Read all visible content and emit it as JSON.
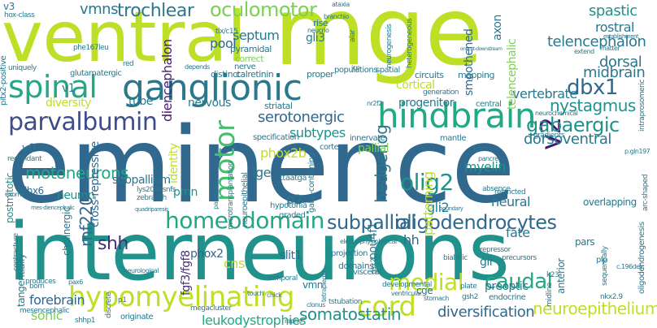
{
  "palette": {
    "dark_purple": "#46196e",
    "purple": "#472c7a",
    "indigo": "#3e4c8a",
    "blue": "#31688e",
    "steel_blue": "#2a788e",
    "teal": "#21918c",
    "green_teal": "#22a884",
    "green": "#44bf70",
    "light_green": "#7ad151",
    "yellow_green": "#bddf26",
    "yellow": "#e2e418"
  },
  "words": {
    "eminence": "eminence",
    "interneurons": "interneurons",
    "ventral": "ventral",
    "mge": "mge",
    "hindbrain": "hindbrain",
    "ganglionic": "ganglionic",
    "spinal": "spinal",
    "parvalbumin": "parvalbumin",
    "hypomyelinating": "hypomyelinating",
    "homeodomain": "homeodomain",
    "cord": "cord",
    "v2": "v2",
    "motor": "motor",
    "oculomotor": "oculomotor",
    "trochlear": "trochlear",
    "medial": "medial",
    "caudal": "caudal",
    "oligodendrocytes": "oligodendrocytes",
    "subpallial": "subpallial",
    "olig2": "olig2",
    "gabaergic": "gabaergic",
    "dbx1": "dbx1",
    "nystagmus": "nystagmus",
    "midbrain": "midbrain",
    "telencephalon": "telencephalon",
    "shh": "shh",
    "somatostatin": "somatostatin",
    "neuroepithelium": "neuroepithelium",
    "diversification": "diversification",
    "leukodystrophies": "leukodystrophies",
    "hedgehog": "hedgehog",
    "spastic": "spastic",
    "rostral": "rostral",
    "dorsal": "dorsal",
    "vertebrate": "vertebrate",
    "dorsoventral": "dorsoventral",
    "serotonergic": "serotonergic",
    "motoneurons": "motoneurons",
    "diencephalon": "diencephalon",
    "septum": "septum",
    "vmns": "vmns",
    "pool": "pool",
    "phox2b": "phox2b",
    "subtypes": "subtypes",
    "pallial": "pallial",
    "myelin": "myelin",
    "fate": "fate",
    "neural": "neural",
    "patterning": "patterning",
    "gli2": "gli2",
    "p2": "p2",
    "lge": "lge",
    "cns": "cns",
    "pmn": "pmn",
    "phox2": "phox2",
    "sonic": "sonic",
    "forebrain": "forebrain",
    "neuron": "neuron",
    "rnf220": "rnf220",
    "hh": "hh",
    "gli": "gli",
    "slit1": "slit1",
    "pou4f1": "pou4f1",
    "vmn": "vmn",
    "identity": "identity",
    "subpallium": "subpallium",
    "diversity": "diversity",
    "tube": "tube",
    "nervous": "nervous",
    "progenitor": "progenitor",
    "cortical": "cortical",
    "smoothened": "smoothened",
    "axon": "axon",
    "gli3": "gli3",
    "telencephalic": "telencephalic",
    "v0": "v0",
    "v1": "v1",
    "v3": "v3",
    "lhx6": "lhx6",
    "postmitotic": "postmitotic",
    "cross_repressive": "cross-repressive",
    "cholinergic": "cholinergic",
    "fgf3_fgf8": "fgf3/fgf8",
    "tangentially": "tangentially",
    "preoptic": "preoptic",
    "anterior": "anterior",
    "mapping": "mapping",
    "circuits": "circuits",
    "striatal": "striatal",
    "pyramidal": "pyramidal",
    "calretinin": "calretinin",
    "distinct": "distinct",
    "glutamatergic": "glutamatergic",
    "rise": "rise",
    "neurogenesis": "neurogenesis",
    "populations": "populations",
    "spatial": "spatial",
    "proper": "proper",
    "correct": "correct",
    "heterogeneous": "heterogeneous",
    "nerve": "nerve",
    "generation": "generation",
    "central": "central",
    "specification": "specification",
    "innervate": "innervate",
    "cortex": "cortex",
    "mantle": "mantle",
    "gradients": "gradients",
    "hlds": "hlds",
    "overlapping": "overlapping",
    "domains": "domains",
    "projection": "projection",
    "visceral": "visceral",
    "gsx2": "gsx2",
    "ttaatga": "ttaatga",
    "gaba_containing": "gaba-containing",
    "hypotonia": "hypotonia",
    "graded": "graded",
    "neuroepithelial": "neuroepithelial",
    "microtransplantation": "microtransplantation",
    "zebrafish": "zebrafish",
    "lys202asnfs": "lys202asnfs",
    "pitx2_positive": "pitx2-positive",
    "uniquely": "uniquely",
    "redundant": "redundant",
    "contracture": "contracture",
    "produces": "produces",
    "pax6": "pax6",
    "born": "born",
    "red": "red",
    "depends": "depends",
    "neurochemical": "neurochemical",
    "nr2f2": "nr2f2",
    "tlx_c15": "tlx/c15",
    "phe167leu": "phe167leu",
    "hox_class": "hox-class",
    "ataxia": "ataxia",
    "branchio": "branchio",
    "neucrio": "neucrio",
    "alar": "alar",
    "jcp": "jcp",
    "onecut_downstream": "onecut-downstream",
    "extend": "extend",
    "matter": "matter",
    "establishment": "establishment",
    "intraprosomeric": "intraprosomeric",
    "p_gln197": "p.gln197",
    "arc_shaped": "arc-shaped",
    "pars": "pars",
    "plp": "plp",
    "c_196delc": "c.196delc",
    "nkx2_9": "nkx2.9",
    "oligodendrogenesis": "oligodendrogenesis",
    "sequentially": "sequentially",
    "midline": "midline",
    "endocrine": "endocrine",
    "k23": "k23",
    "precursors": "precursors",
    "repressor": "repressor",
    "biallelic": "biallelic",
    "restricted": "restricted",
    "absence": "absence",
    "pancreas": "pancreas",
    "developmental": "developmental",
    "electrophysiological": "electrophysiological",
    "plate": "plate",
    "cge": "cge",
    "stomach": "stomach",
    "tstubation": "tstubation",
    "ventricular": "ventricular",
    "clonus": "clonus",
    "raphe": "raphe",
    "originate": "originate",
    "megacluster": "megacluster",
    "tetraplegia": "tetraplegia",
    "temporal": "temporal",
    "chick": "chick",
    "touch": "touch",
    "neurological": "neurological",
    "quadriparesis": "quadriparesis",
    "discrete": "discrete",
    "mesencephalic": "mesencephalic",
    "shhp1": "shhp1",
    "p1": "p1",
    "exome": "exome",
    "mes_diencephalic": "mes-diencephalic",
    "paired_like": "paired-like",
    "boundary": "boundary",
    "gsh2": "gsh2"
  }
}
